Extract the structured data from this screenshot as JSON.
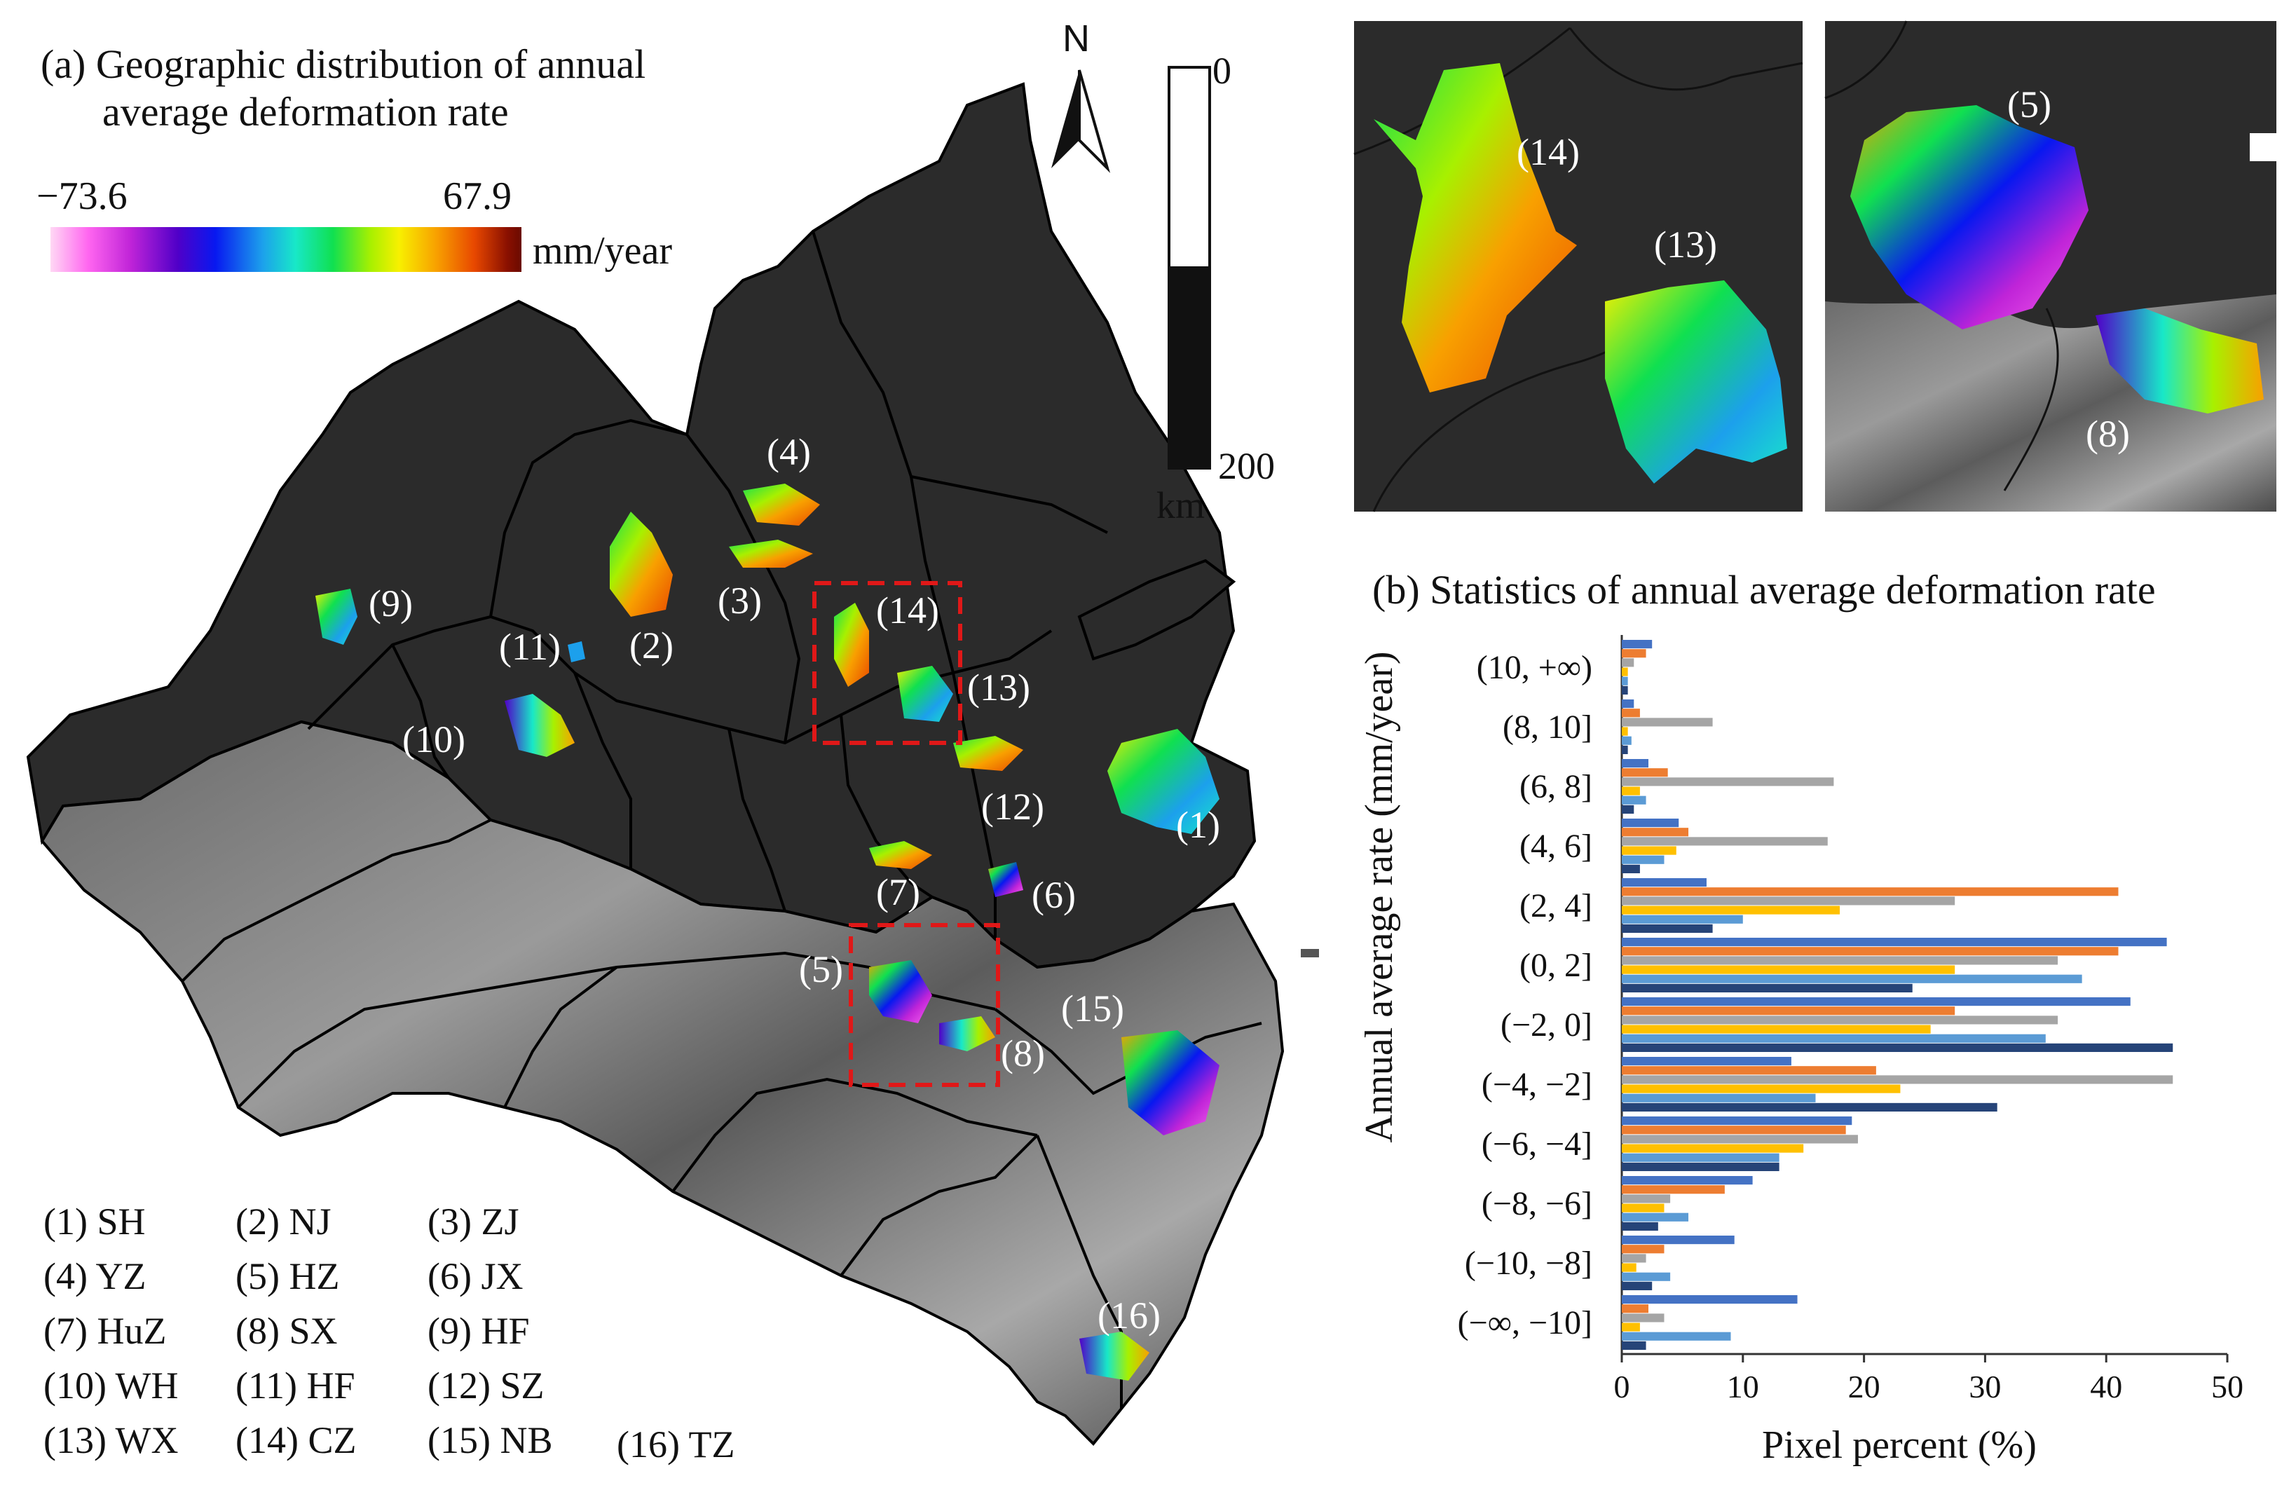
{
  "panel_a": {
    "title_line1": "(a) Geographic distribution of annual",
    "title_line2": "average deformation rate",
    "colorbar": {
      "min": "−73.6",
      "max": "67.9",
      "unit": "mm/year"
    },
    "scale_bar": {
      "top": "0",
      "bottom": "200",
      "unit": "km"
    },
    "north": "N",
    "region_labels": [
      "(1)",
      "(2)",
      "(3)",
      "(4)",
      "(5)",
      "(6)",
      "(7)",
      "(8)",
      "(9)",
      "(10)",
      "(11)",
      "(12)",
      "(13)",
      "(14)",
      "(15)",
      "(16)"
    ],
    "legend": [
      "(1) SH",
      "(2) NJ",
      "(3) ZJ",
      "(4) YZ",
      "(5) HZ",
      "(6) JX",
      "(7) HuZ",
      "(8) SX",
      "(9) HF",
      "(10) WH",
      "(11) HF",
      "(12) SZ",
      "(13) WX",
      "(14) CZ",
      "(15) NB",
      "(16) TZ"
    ]
  },
  "inset_1": {
    "labels": [
      "(14)",
      "(13)"
    ]
  },
  "inset_2": {
    "labels": [
      "(5)",
      "(8)"
    ]
  },
  "panel_b": {
    "title": "(b) Statistics of annual average deformation rate",
    "xlabel": "Pixel percent (%)",
    "ylabel": "Annual average rate (mm/year)"
  },
  "colors": {
    "land": "#2b2b2b",
    "sea": "#ffffff",
    "boundary": "#000000",
    "box": "#e01818",
    "bar_palette": [
      "#4472c4",
      "#ed7d31",
      "#a5a5a5",
      "#ffc000",
      "#5b9bd5",
      "#264478"
    ]
  },
  "chart_data": {
    "type": "bar",
    "orientation": "horizontal",
    "title": "(b) Statistics of annual average deformation rate",
    "xlabel": "Pixel percent (%)",
    "ylabel": "Annual average rate (mm/year)",
    "xlim": [
      0,
      50
    ],
    "xticks": [
      "0",
      "10",
      "20",
      "30",
      "40",
      "50"
    ],
    "categories": [
      "(−∞, −10]",
      "(−10, −8]",
      "(−8, −6]",
      "(−6, −4]",
      "(−4, −2]",
      "(−2, 0]",
      "(0, 2]",
      "(2, 4]",
      "(4, 6]",
      "(6, 8]",
      "(8, 10]",
      "(10, +∞)"
    ],
    "series": [
      {
        "name": "SH",
        "values": [
          14.5,
          9.3,
          10.8,
          19.0,
          14.0,
          42.0,
          45.0,
          7.0,
          4.7,
          2.2,
          1.0,
          2.5
        ]
      },
      {
        "name": "NJ",
        "values": [
          2.2,
          3.5,
          8.5,
          18.5,
          21.0,
          27.5,
          41.0,
          41.0,
          5.5,
          3.8,
          1.5,
          2.0
        ]
      },
      {
        "name": "ZJ",
        "values": [
          3.5,
          2.0,
          4.0,
          19.5,
          45.5,
          36.0,
          36.0,
          27.5,
          17.0,
          17.5,
          7.5,
          1.0
        ]
      },
      {
        "name": "YZ",
        "values": [
          1.5,
          1.2,
          3.5,
          15.0,
          23.0,
          25.5,
          27.5,
          18.0,
          4.5,
          1.5,
          0.5,
          0.5
        ]
      },
      {
        "name": "HZ",
        "values": [
          9.0,
          4.0,
          5.5,
          13.0,
          16.0,
          35.0,
          38.0,
          10.0,
          3.5,
          2.0,
          0.8,
          0.5
        ]
      },
      {
        "name": "SX",
        "values": [
          2.0,
          2.5,
          3.0,
          13.0,
          31.0,
          45.5,
          24.0,
          7.5,
          1.5,
          1.0,
          0.5,
          0.5
        ]
      }
    ]
  }
}
